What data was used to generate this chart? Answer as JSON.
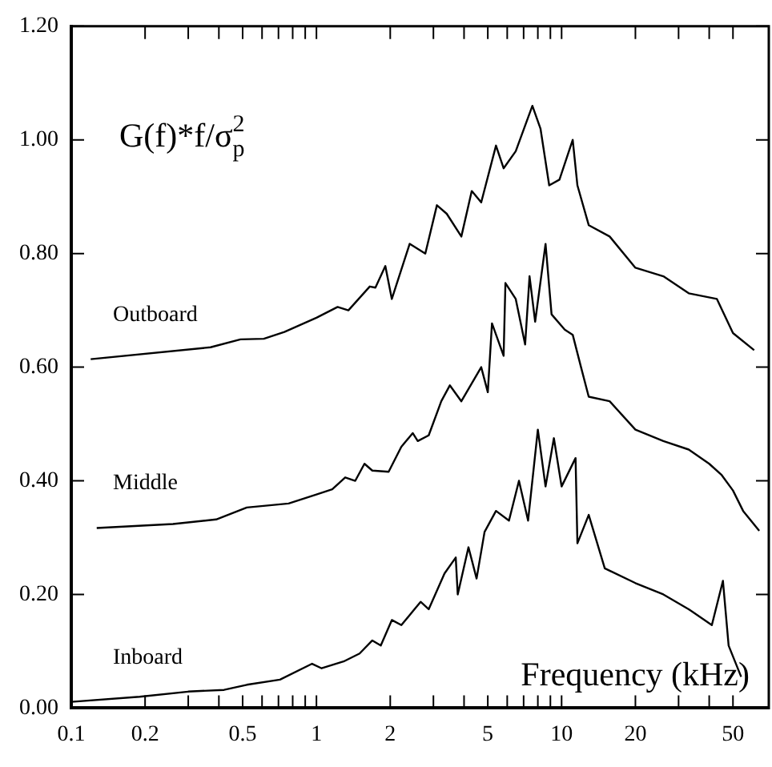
{
  "chart_data": {
    "type": "line",
    "ylabel": "G(f)*f/σ$_{p}$$^{2}$",
    "xlabel": "Frequency (kHz)",
    "log": "x",
    "grid": false,
    "xlim": [
      0.1,
      70
    ],
    "xticks": [
      0.1,
      0.2,
      {
        "value": 0.3,
        "label": null
      },
      {
        "value": 0.4,
        "label": null
      },
      0.5,
      {
        "value": 0.6,
        "label": null
      },
      {
        "value": 0.7,
        "label": null
      },
      {
        "value": 0.8,
        "label": null
      },
      {
        "value": 0.9,
        "label": null
      },
      1,
      2,
      {
        "value": 3,
        "label": null
      },
      {
        "value": 4,
        "label": null
      },
      5,
      {
        "value": 6,
        "label": null
      },
      {
        "value": 7,
        "label": null
      },
      {
        "value": 8,
        "label": null
      },
      {
        "value": 9,
        "label": null
      },
      10,
      20,
      {
        "value": 30,
        "label": null
      },
      {
        "value": 40,
        "label": null
      },
      50
    ],
    "ylim": [
      0,
      1.2
    ],
    "yticks": [
      {
        "value": 0,
        "label": "0.00"
      },
      {
        "value": 0.2,
        "label": "0.20"
      },
      {
        "value": 0.4,
        "label": "0.40"
      },
      {
        "value": 0.6,
        "label": "0.60"
      },
      {
        "value": 0.8,
        "label": "0.80"
      },
      {
        "value": 1,
        "label": "1.00"
      },
      {
        "value": 1.2,
        "label": "1.20"
      }
    ],
    "series": [
      {
        "name": "Outboard",
        "color": "#000000",
        "x": [
          0.12,
          0.37,
          0.49,
          0.61,
          0.74,
          1,
          1.22,
          1.35,
          1.65,
          1.74,
          1.91,
          2.03,
          2.4,
          2.78,
          3.1,
          3.4,
          3.9,
          4.3,
          4.7,
          5.4,
          5.8,
          6.5,
          7.6,
          8.2,
          8.9,
          9.8,
          11.1,
          11.6,
          12.9,
          15.7,
          20,
          26,
          33,
          43,
          50,
          61
        ],
        "values": [
          0.614,
          0.635,
          0.649,
          0.65,
          0.662,
          0.687,
          0.706,
          0.7,
          0.742,
          0.74,
          0.778,
          0.72,
          0.817,
          0.8,
          0.885,
          0.87,
          0.83,
          0.91,
          0.89,
          0.99,
          0.95,
          0.98,
          1.06,
          1.02,
          0.92,
          0.93,
          1.0,
          0.92,
          0.85,
          0.83,
          0.775,
          0.76,
          0.73,
          0.72,
          0.66,
          0.63
        ]
      },
      {
        "name": "Middle",
        "color": "#000000",
        "x": [
          0.127,
          0.26,
          0.39,
          0.52,
          0.77,
          1,
          1.16,
          1.31,
          1.44,
          1.57,
          1.69,
          1.97,
          2.22,
          2.47,
          2.59,
          2.87,
          3.23,
          3.5,
          3.9,
          4.7,
          5.0,
          5.2,
          5.8,
          5.9,
          6.5,
          7.1,
          7.4,
          7.8,
          8.6,
          9.1,
          10.3,
          11.1,
          12,
          12.9,
          15.7,
          20,
          26,
          33,
          40,
          45,
          50,
          55,
          64
        ],
        "values": [
          0.317,
          0.324,
          0.332,
          0.353,
          0.36,
          0.376,
          0.385,
          0.406,
          0.4,
          0.43,
          0.418,
          0.416,
          0.46,
          0.484,
          0.47,
          0.48,
          0.54,
          0.568,
          0.54,
          0.6,
          0.556,
          0.677,
          0.62,
          0.748,
          0.72,
          0.64,
          0.76,
          0.68,
          0.817,
          0.693,
          0.666,
          0.657,
          0.6,
          0.548,
          0.54,
          0.49,
          0.47,
          0.455,
          0.43,
          0.41,
          0.383,
          0.347,
          0.312
        ]
      },
      {
        "name": "Inboard",
        "color": "#000000",
        "x": [
          0.1,
          0.19,
          0.3,
          0.42,
          0.52,
          0.71,
          0.96,
          1.05,
          1.29,
          1.5,
          1.69,
          1.83,
          2.03,
          2.22,
          2.66,
          2.87,
          3.33,
          3.7,
          3.77,
          4.17,
          4.5,
          4.85,
          5.4,
          6.1,
          6.7,
          7.3,
          8.0,
          8.6,
          9.3,
          10,
          11.4,
          11.6,
          12.9,
          15,
          20,
          26,
          33,
          41,
          45.5,
          48,
          54
        ],
        "values": [
          0.011,
          0.02,
          0.029,
          0.032,
          0.041,
          0.05,
          0.078,
          0.07,
          0.082,
          0.096,
          0.119,
          0.11,
          0.155,
          0.146,
          0.187,
          0.174,
          0.237,
          0.265,
          0.2,
          0.283,
          0.228,
          0.31,
          0.347,
          0.33,
          0.4,
          0.33,
          0.49,
          0.39,
          0.475,
          0.39,
          0.44,
          0.29,
          0.34,
          0.246,
          0.22,
          0.2,
          0.174,
          0.146,
          0.224,
          0.11,
          0.055
        ]
      }
    ]
  }
}
